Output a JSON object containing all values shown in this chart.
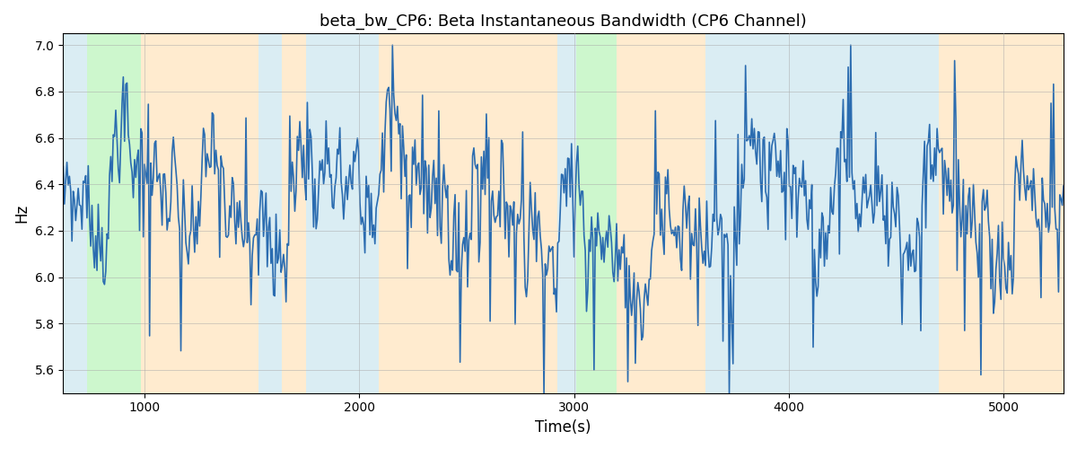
{
  "title": "beta_bw_CP6: Beta Instantaneous Bandwidth (CP6 Channel)",
  "xlabel": "Time(s)",
  "ylabel": "Hz",
  "ylim_bottom": 5.5,
  "ylim_top": 7.05,
  "xlim_left": 620,
  "xlim_right": 5280,
  "yticks": [
    5.6,
    5.8,
    6.0,
    6.2,
    6.4,
    6.6,
    6.8,
    7.0
  ],
  "xticks": [
    1000,
    2000,
    3000,
    4000,
    5000
  ],
  "line_color": "#2b6cb0",
  "line_width": 1.2,
  "background_color": "#ffffff",
  "grid_color": "#aaaaaa",
  "color_blue": "#add8e6",
  "color_green": "#90ee90",
  "color_orange": "#ffd8a0",
  "alpha_blue": 0.45,
  "alpha_green": 0.45,
  "alpha_orange": 0.5,
  "bands": [
    {
      "start": 620,
      "end": 730,
      "type": "blue"
    },
    {
      "start": 730,
      "end": 980,
      "type": "green"
    },
    {
      "start": 980,
      "end": 1150,
      "type": "orange"
    },
    {
      "start": 1150,
      "end": 1530,
      "type": "orange"
    },
    {
      "start": 1530,
      "end": 1640,
      "type": "blue"
    },
    {
      "start": 1640,
      "end": 1750,
      "type": "orange"
    },
    {
      "start": 1750,
      "end": 2090,
      "type": "blue"
    },
    {
      "start": 2090,
      "end": 2230,
      "type": "orange"
    },
    {
      "start": 2230,
      "end": 2920,
      "type": "orange"
    },
    {
      "start": 2920,
      "end": 3010,
      "type": "blue"
    },
    {
      "start": 3010,
      "end": 3200,
      "type": "green"
    },
    {
      "start": 3200,
      "end": 3380,
      "type": "orange"
    },
    {
      "start": 3380,
      "end": 3610,
      "type": "orange"
    },
    {
      "start": 3610,
      "end": 3990,
      "type": "blue"
    },
    {
      "start": 3990,
      "end": 4460,
      "type": "blue"
    },
    {
      "start": 4460,
      "end": 4700,
      "type": "blue"
    },
    {
      "start": 4700,
      "end": 5280,
      "type": "orange"
    }
  ],
  "n_points": 800,
  "x_start": 620,
  "x_end": 5280,
  "seed": 7
}
